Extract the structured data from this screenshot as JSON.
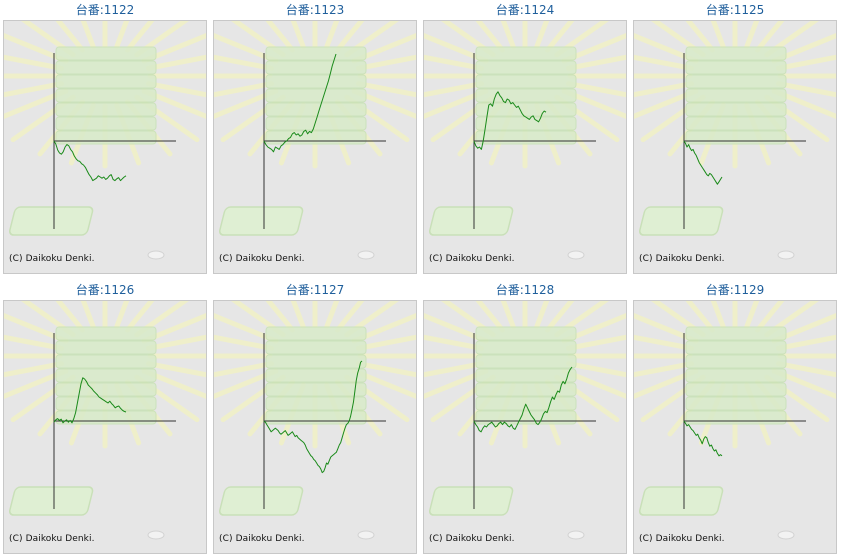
{
  "chart_data": [
    {
      "type": "line",
      "title": "台番:1122",
      "credit": "(C) Daikoku Denki.",
      "color": "#1a8a1a",
      "y": [
        0,
        -5,
        -15,
        -20,
        -22,
        -18,
        -10,
        -6,
        -8,
        -14,
        -18,
        -25,
        -30,
        -33,
        -34,
        -38,
        -40,
        -44,
        -50,
        -56,
        -60,
        -66,
        -64,
        -62,
        -58,
        -60,
        -62,
        -60,
        -64,
        -62,
        -58,
        -56,
        -64,
        -66,
        -63,
        -61,
        -66,
        -63,
        -60,
        -58
      ]
    },
    {
      "type": "line",
      "title": "台番:1123",
      "credit": "(C) Daikoku Denki.",
      "color": "#1a8a1a",
      "y": [
        0,
        -6,
        -10,
        -12,
        -14,
        -18,
        -10,
        -12,
        -14,
        -8,
        -6,
        -2,
        0,
        4,
        6,
        12,
        14,
        10,
        12,
        8,
        10,
        16,
        18,
        12,
        16,
        14,
        20,
        30,
        40,
        50,
        60,
        70,
        80,
        90,
        100,
        112,
        125,
        135,
        145
      ]
    },
    {
      "type": "line",
      "title": "台番:1124",
      "credit": "(C) Daikoku Denki.",
      "color": "#1a8a1a",
      "y": [
        0,
        -8,
        -12,
        -10,
        -14,
        0,
        20,
        40,
        60,
        62,
        58,
        70,
        78,
        82,
        76,
        72,
        66,
        64,
        70,
        68,
        62,
        64,
        60,
        56,
        58,
        52,
        46,
        42,
        40,
        38,
        36,
        40,
        42,
        36,
        34,
        32,
        38,
        46,
        50,
        48
      ]
    },
    {
      "type": "line",
      "title": "台番:1125",
      "credit": "(C) Daikoku Denki.",
      "color": "#1a8a1a",
      "y": [
        0,
        -4,
        -10,
        -6,
        -12,
        -16,
        -14,
        -20,
        -24,
        -30,
        -36,
        -40,
        -44,
        -48,
        -52,
        -56,
        -58,
        -54,
        -56,
        -60,
        -64,
        -68,
        -72,
        -68,
        -64,
        -60
      ]
    },
    {
      "type": "line",
      "title": "台番:1126",
      "credit": "(C) Daikoku Denki.",
      "color": "#1a8a1a",
      "y": [
        -2,
        2,
        4,
        1,
        3,
        -3,
        0,
        2,
        -2,
        1,
        -3,
        4,
        14,
        30,
        46,
        62,
        72,
        70,
        66,
        60,
        57,
        54,
        50,
        47,
        44,
        40,
        38,
        36,
        34,
        32,
        30,
        33,
        29,
        26,
        22,
        24,
        25,
        21,
        18,
        16,
        15
      ]
    },
    {
      "type": "line",
      "title": "台番:1127",
      "credit": "(C) Daikoku Denki.",
      "color": "#1a8a1a",
      "y": [
        0,
        -2,
        -6,
        -10,
        -14,
        -18,
        -16,
        -14,
        -12,
        -14,
        -16,
        -20,
        -22,
        -20,
        -18,
        -16,
        -20,
        -24,
        -22,
        -20,
        -18,
        -22,
        -26,
        -24,
        -28,
        -30,
        -32,
        -34,
        -36,
        -40,
        -46,
        -50,
        -54,
        -58,
        -60,
        -64,
        -66,
        -70,
        -74,
        -76,
        -80,
        -86,
        -84,
        -78,
        -70,
        -72,
        -66,
        -60,
        -58,
        -56,
        -54,
        -52,
        -46,
        -40,
        -36,
        -28,
        -20,
        -12,
        -6,
        -4,
        0,
        8,
        20,
        32,
        50,
        68,
        80,
        88,
        98,
        100
      ]
    },
    {
      "type": "line",
      "title": "台番:1128",
      "credit": "(C) Daikoku Denki.",
      "color": "#1a8a1a",
      "y": [
        0,
        -6,
        -10,
        -16,
        -18,
        -12,
        -8,
        -10,
        -6,
        -4,
        -2,
        -6,
        -10,
        -8,
        -4,
        -2,
        -6,
        -2,
        -4,
        -8,
        -10,
        -6,
        -12,
        -14,
        -8,
        -2,
        4,
        10,
        20,
        28,
        22,
        16,
        10,
        6,
        2,
        -4,
        -6,
        -2,
        4,
        12,
        16,
        14,
        22,
        32,
        40,
        36,
        44,
        50,
        48,
        60,
        66,
        62,
        70,
        80,
        86,
        90
      ]
    },
    {
      "type": "line",
      "title": "台番:1129",
      "credit": "(C) Daikoku Denki.",
      "color": "#1a8a1a",
      "y": [
        0,
        -4,
        -8,
        -6,
        -10,
        -14,
        -16,
        -20,
        -24,
        -22,
        -28,
        -32,
        -38,
        -30,
        -26,
        -28,
        -36,
        -42,
        -40,
        -46,
        -50,
        -48,
        -54,
        -58,
        -56,
        -58
      ]
    }
  ]
}
